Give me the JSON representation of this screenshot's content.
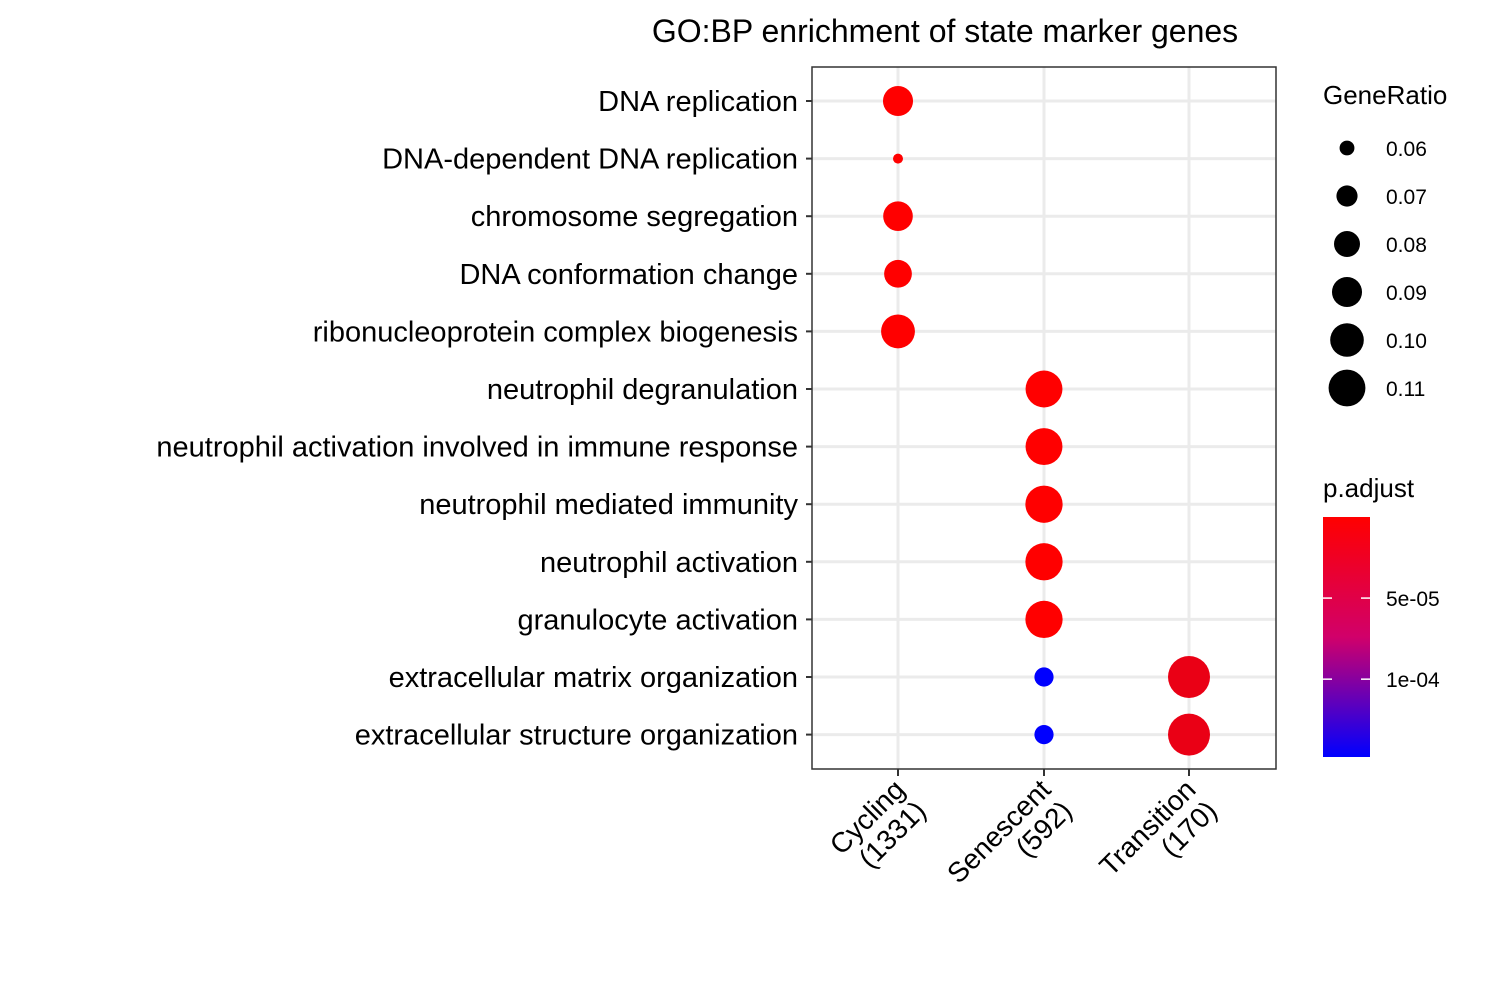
{
  "chart_data": {
    "type": "scatter",
    "title": "GO:BP enrichment of state marker genes",
    "xlabel": "",
    "ylabel": "",
    "x_categories": [
      "Cycling\n(1331)",
      "Senescent\n(592)",
      "Transition\n(170)"
    ],
    "y_categories": [
      "DNA replication",
      "DNA-dependent DNA replication",
      "chromosome segregation",
      "DNA conformation change",
      "ribonucleoprotein complex biogenesis",
      "neutrophil degranulation",
      "neutrophil activation involved in immune response",
      "neutrophil mediated immunity",
      "neutrophil activation",
      "granulocyte activation",
      "extracellular matrix organization",
      "extracellular structure organization"
    ],
    "points": [
      {
        "x": "Cycling\n(1331)",
        "y": "DNA replication",
        "gene_ratio": 0.084,
        "p_adjust": 1e-09
      },
      {
        "x": "Cycling\n(1331)",
        "y": "DNA-dependent DNA replication",
        "gene_ratio": 0.054,
        "p_adjust": 1e-09
      },
      {
        "x": "Cycling\n(1331)",
        "y": "chromosome segregation",
        "gene_ratio": 0.083,
        "p_adjust": 1e-09
      },
      {
        "x": "Cycling\n(1331)",
        "y": "DNA conformation change",
        "gene_ratio": 0.079,
        "p_adjust": 1e-09
      },
      {
        "x": "Cycling\n(1331)",
        "y": "ribonucleoprotein complex biogenesis",
        "gene_ratio": 0.093,
        "p_adjust": 1e-09
      },
      {
        "x": "Senescent\n(592)",
        "y": "neutrophil degranulation",
        "gene_ratio": 0.101,
        "p_adjust": 1e-09
      },
      {
        "x": "Senescent\n(592)",
        "y": "neutrophil activation involved in immune response",
        "gene_ratio": 0.101,
        "p_adjust": 1e-09
      },
      {
        "x": "Senescent\n(592)",
        "y": "neutrophil mediated immunity",
        "gene_ratio": 0.102,
        "p_adjust": 1e-09
      },
      {
        "x": "Senescent\n(592)",
        "y": "neutrophil activation",
        "gene_ratio": 0.102,
        "p_adjust": 1e-09
      },
      {
        "x": "Senescent\n(592)",
        "y": "granulocyte activation",
        "gene_ratio": 0.102,
        "p_adjust": 1e-09
      },
      {
        "x": "Senescent\n(592)",
        "y": "extracellular matrix organization",
        "gene_ratio": 0.064,
        "p_adjust": 0.000148
      },
      {
        "x": "Senescent\n(592)",
        "y": "extracellular structure organization",
        "gene_ratio": 0.064,
        "p_adjust": 0.000148
      },
      {
        "x": "Transition\n(170)",
        "y": "extracellular matrix organization",
        "gene_ratio": 0.116,
        "p_adjust": 1.2e-05
      },
      {
        "x": "Transition\n(170)",
        "y": "extracellular structure organization",
        "gene_ratio": 0.116,
        "p_adjust": 1.2e-05
      }
    ],
    "size_legend": {
      "title": "GeneRatio",
      "breaks": [
        0.06,
        0.07,
        0.08,
        0.09,
        0.1,
        0.11
      ],
      "labels": [
        "0.06",
        "0.07",
        "0.08",
        "0.09",
        "0.10",
        "0.11"
      ],
      "range": [
        0.054,
        0.116
      ]
    },
    "color_legend": {
      "title": "p.adjust",
      "breaks": [
        5e-05,
        0.0001
      ],
      "labels": [
        "5e-05",
        "1e-04"
      ],
      "range": [
        0,
        0.000148
      ],
      "low_color": "#ff0000",
      "high_color": "#0000ff"
    },
    "grid": true,
    "legend_position": "right"
  }
}
